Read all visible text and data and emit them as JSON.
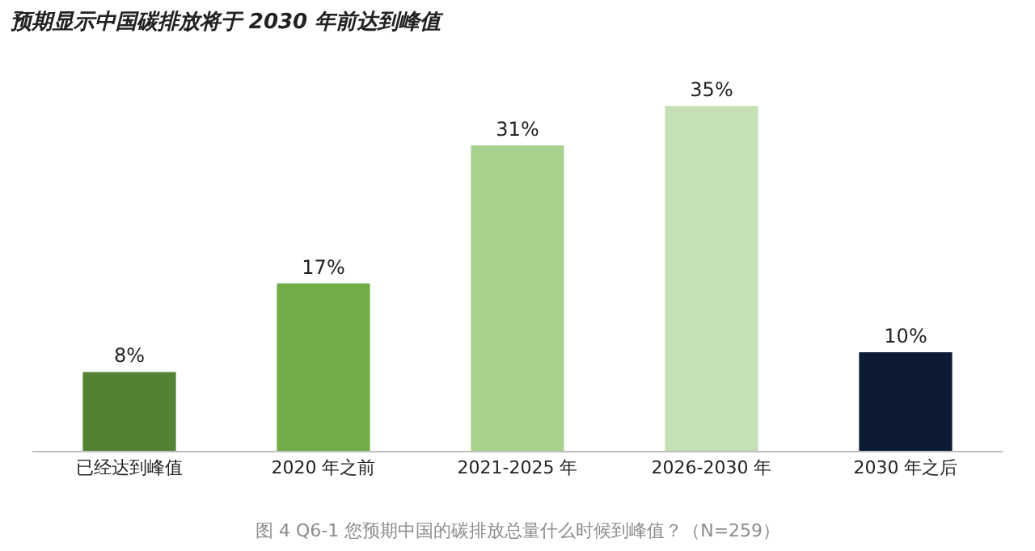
{
  "chart_data": {
    "type": "bar",
    "title": "预期显示中国碳排放将于 2030 年前达到峰值",
    "categories": [
      "已经达到峰值",
      "2020 年之前",
      "2021-2025 年",
      "2026-2030 年",
      "2030 年之后"
    ],
    "values": [
      8,
      17,
      31,
      35,
      10
    ],
    "value_labels": [
      "8%",
      "17%",
      "31%",
      "35%",
      "10%"
    ],
    "colors": [
      "#548235",
      "#70ad47",
      "#a9d18e",
      "#c5e0b4",
      "#0c1a33"
    ],
    "annotations": [
      "图 4 Q6-1 您预期中国的碳排放总量什么时候到峰值？（N=259）"
    ]
  }
}
